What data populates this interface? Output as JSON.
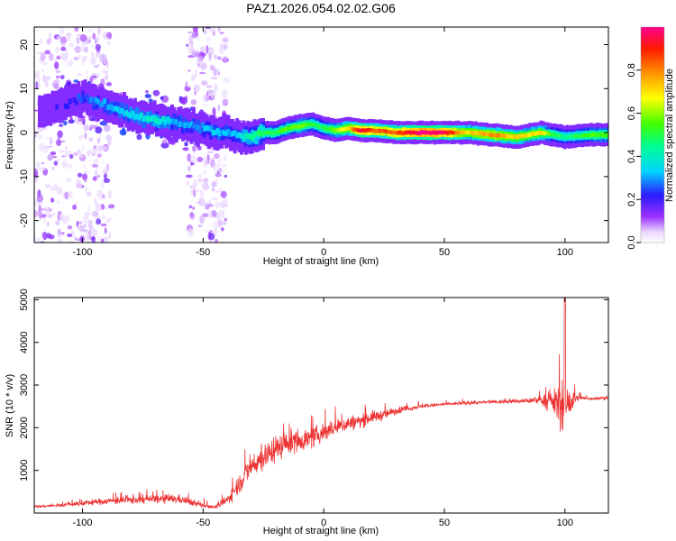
{
  "title": "PAZ1.2026.054.02.02.G06",
  "chart_data": [
    {
      "type": "heatmap",
      "name": "spectrogram",
      "xlabel": "Height of straight line (km)",
      "ylabel": "Frequency (Hz)",
      "xlim": [
        -120,
        118
      ],
      "ylim": [
        -25,
        24
      ],
      "xticks": [
        -100,
        -50,
        0,
        50,
        100
      ],
      "yticks": [
        -20,
        -10,
        0,
        10,
        20
      ],
      "colorbar": {
        "label": "Normalized spectral amplitude",
        "range": [
          0,
          1
        ],
        "ticks": [
          "0.0",
          "0.2",
          "0.4",
          "0.6",
          "0.8"
        ]
      },
      "ridge": {
        "x": [
          -115,
          -100,
          -90,
          -80,
          -70,
          -60,
          -50,
          -45,
          -40,
          -35,
          -30,
          -25,
          -20,
          -15,
          -10,
          -5,
          0,
          5,
          10,
          15,
          20,
          30,
          40,
          50,
          60,
          70,
          80,
          90,
          95,
          100,
          110,
          118
        ],
        "y": [
          5,
          8,
          6,
          4,
          3,
          2,
          1,
          0,
          0,
          -1,
          -1,
          0,
          0,
          1,
          1.5,
          2,
          1,
          0.5,
          1,
          0.5,
          0.5,
          0,
          0,
          0,
          0,
          -0.5,
          -1,
          0,
          -0.5,
          -1,
          -0.5,
          -0.5
        ],
        "amplitude": [
          0.15,
          0.25,
          0.3,
          0.35,
          0.4,
          0.3,
          0.3,
          0.35,
          0.3,
          0.35,
          0.45,
          0.5,
          0.5,
          0.55,
          0.6,
          0.5,
          0.5,
          0.6,
          0.7,
          0.95,
          0.85,
          0.85,
          1.0,
          0.95,
          0.7,
          0.8,
          0.7,
          0.7,
          0.5,
          0.45,
          0.55,
          0.55
        ]
      },
      "noise_bands_x": [
        [
          -120,
          -88
        ],
        [
          -57,
          -40
        ]
      ]
    },
    {
      "type": "line",
      "name": "snr",
      "xlabel": "Height of straight line (km)",
      "ylabel": "SNR (10 * v/v)",
      "xlim": [
        -120,
        118
      ],
      "ylim": [
        0,
        5050
      ],
      "xticks": [
        -100,
        -50,
        0,
        50,
        100
      ],
      "yticks": [
        1000,
        2000,
        3000,
        4000,
        5000
      ],
      "color": "#ee3333",
      "envelope": {
        "x": [
          -120,
          -110,
          -100,
          -90,
          -80,
          -70,
          -60,
          -50,
          -45,
          -40,
          -35,
          -30,
          -25,
          -20,
          -15,
          -10,
          -5,
          0,
          5,
          10,
          15,
          20,
          25,
          30,
          35,
          40,
          50,
          60,
          70,
          80,
          90,
          95,
          100,
          105,
          110,
          118
        ],
        "mean": [
          150,
          180,
          230,
          280,
          300,
          330,
          330,
          180,
          140,
          300,
          700,
          1100,
          1300,
          1500,
          1650,
          1700,
          1750,
          1900,
          2000,
          2100,
          2150,
          2250,
          2300,
          2400,
          2450,
          2500,
          2550,
          2580,
          2600,
          2620,
          2650,
          2600,
          2500,
          2700,
          2680,
          2700
        ],
        "spread": [
          60,
          80,
          120,
          160,
          200,
          220,
          220,
          120,
          80,
          250,
          500,
          600,
          650,
          650,
          600,
          550,
          500,
          450,
          400,
          380,
          350,
          300,
          250,
          200,
          120,
          100,
          80,
          80,
          90,
          100,
          200,
          600,
          1400,
          150,
          80,
          80
        ]
      },
      "peak": {
        "x": 100,
        "y": 5050
      }
    }
  ]
}
